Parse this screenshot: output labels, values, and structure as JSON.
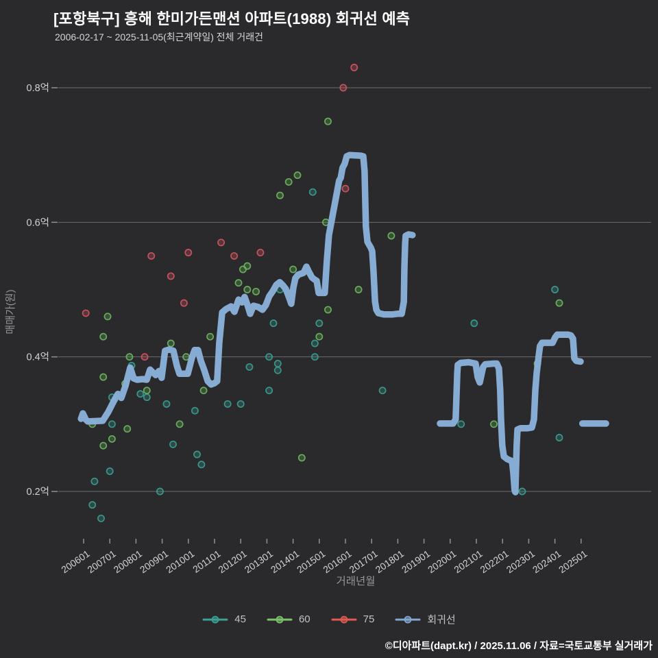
{
  "header": {
    "title": "[포항북구] 흥해 한미가든맨션 아파트(1988) 회귀선 예측",
    "subtitle": "2006-02-17 ~ 2025-11-05(최근계약일) 전체 거래건"
  },
  "footer": {
    "credit": "©디아파트(dapt.kr) / 2025.11.06 / 자료=국토교통부 실거래가"
  },
  "colors": {
    "background": "#2a292b",
    "grid": "#6c6c71",
    "tick": "#919195",
    "tick_label": "#d2d2d5",
    "axis_title": "#95959a",
    "series_45": "#3a9c8e",
    "series_60": "#69b55c",
    "series_75": "#cc5560",
    "regression": "#8ab1d9"
  },
  "legend": [
    {
      "label": "45",
      "color": "#3ba294"
    },
    {
      "label": "60",
      "color": "#7cc468"
    },
    {
      "label": "75",
      "color": "#e25a52"
    },
    {
      "label": "회귀선",
      "color": "#82a8d2"
    }
  ],
  "chart_data": {
    "type": "scatter",
    "title": "[포항북구] 흥해 한미가든맨션 아파트(1988) 회귀선 예측",
    "xlabel": "거래년월",
    "ylabel": "매매가(원)",
    "x_ticks": [
      "200601",
      "200701",
      "200801",
      "200901",
      "201001",
      "201101",
      "201201",
      "201301",
      "201401",
      "201501",
      "201601",
      "201701",
      "201801",
      "201901",
      "202001",
      "202101",
      "202201",
      "202301",
      "202401",
      "202501"
    ],
    "y_ticks": [
      {
        "value": 0.2,
        "label": "0.2억"
      },
      {
        "value": 0.4,
        "label": "0.4억"
      },
      {
        "value": 0.6,
        "label": "0.6억"
      },
      {
        "value": 0.8,
        "label": "0.8억"
      }
    ],
    "x_range_years": [
      2005.0,
      2027.0
    ],
    "y_range_eok": [
      0.13,
      0.87
    ],
    "grid": true,
    "legend_position": "bottom",
    "unit": "억",
    "series": [
      {
        "name": "45",
        "points": [
          [
            "2006-05",
            0.18
          ],
          [
            "2006-06",
            0.215
          ],
          [
            "2006-09",
            0.16
          ],
          [
            "2007-01",
            0.23
          ],
          [
            "2007-02",
            0.34
          ],
          [
            "2007-02",
            0.3
          ],
          [
            "2007-11",
            0.387
          ],
          [
            "2008-03",
            0.345
          ],
          [
            "2008-06",
            0.34
          ],
          [
            "2008-12",
            0.2
          ],
          [
            "2009-03",
            0.33
          ],
          [
            "2009-06",
            0.27
          ],
          [
            "2010-04",
            0.32
          ],
          [
            "2010-05",
            0.255
          ],
          [
            "2010-07",
            0.24
          ],
          [
            "2011-07",
            0.33
          ],
          [
            "2012-01",
            0.33
          ],
          [
            "2012-05",
            0.385
          ],
          [
            "2013-02",
            0.35
          ],
          [
            "2013-02",
            0.4
          ],
          [
            "2013-04",
            0.45
          ],
          [
            "2013-06",
            0.39
          ],
          [
            "2013-06",
            0.38
          ],
          [
            "2013-07",
            0.5
          ],
          [
            "2014-10",
            0.645
          ],
          [
            "2014-11",
            0.4
          ],
          [
            "2014-11",
            0.42
          ],
          [
            "2015-01",
            0.45
          ],
          [
            "2017-06",
            0.35
          ],
          [
            "2020-06",
            0.3
          ],
          [
            "2020-12",
            0.45
          ],
          [
            "2022-10",
            0.2
          ],
          [
            "2024-01",
            0.5
          ],
          [
            "2024-03",
            0.28
          ]
        ]
      },
      {
        "name": "60",
        "points": [
          [
            "2006-05",
            0.3
          ],
          [
            "2006-10",
            0.43
          ],
          [
            "2006-10",
            0.37
          ],
          [
            "2006-10",
            0.268
          ],
          [
            "2006-12",
            0.46
          ],
          [
            "2007-02",
            0.278
          ],
          [
            "2007-08",
            0.36
          ],
          [
            "2007-09",
            0.293
          ],
          [
            "2007-10",
            0.4
          ],
          [
            "2008-06",
            0.35
          ],
          [
            "2009-05",
            0.42
          ],
          [
            "2009-09",
            0.3
          ],
          [
            "2009-12",
            0.4
          ],
          [
            "2010-08",
            0.35
          ],
          [
            "2010-11",
            0.43
          ],
          [
            "2011-12",
            0.51
          ],
          [
            "2012-02",
            0.53
          ],
          [
            "2012-04",
            0.535
          ],
          [
            "2012-04",
            0.5
          ],
          [
            "2012-08",
            0.497
          ],
          [
            "2013-07",
            0.64
          ],
          [
            "2013-11",
            0.66
          ],
          [
            "2014-01",
            0.53
          ],
          [
            "2014-03",
            0.67
          ],
          [
            "2014-05",
            0.25
          ],
          [
            "2015-01",
            0.43
          ],
          [
            "2015-04",
            0.6
          ],
          [
            "2015-05",
            0.75
          ],
          [
            "2015-05",
            0.47
          ],
          [
            "2016-07",
            0.5
          ],
          [
            "2017-10",
            0.58
          ],
          [
            "2021-09",
            0.3
          ],
          [
            "2023-05",
            0.39
          ],
          [
            "2024-03",
            0.48
          ]
        ]
      },
      {
        "name": "75",
        "points": [
          [
            "2006-02",
            0.465
          ],
          [
            "2008-05",
            0.4
          ],
          [
            "2008-08",
            0.55
          ],
          [
            "2009-05",
            0.52
          ],
          [
            "2009-11",
            0.48
          ],
          [
            "2010-01",
            0.555
          ],
          [
            "2011-04",
            0.57
          ],
          [
            "2011-10",
            0.55
          ],
          [
            "2012-10",
            0.555
          ],
          [
            "2015-12",
            0.8
          ],
          [
            "2016-01",
            0.65
          ],
          [
            "2016-05",
            0.83
          ]
        ]
      }
    ],
    "regression_line": {
      "name": "회귀선",
      "segments": [
        [
          [
            2005.9,
            0.308
          ],
          [
            2005.97,
            0.316
          ],
          [
            2006.08,
            0.307
          ],
          [
            2006.16,
            0.304
          ],
          [
            2006.73,
            0.305
          ],
          [
            2006.94,
            0.318
          ],
          [
            2007.15,
            0.334
          ],
          [
            2007.31,
            0.345
          ],
          [
            2007.44,
            0.339
          ],
          [
            2007.6,
            0.357
          ],
          [
            2007.78,
            0.384
          ],
          [
            2007.91,
            0.368
          ],
          [
            2008.04,
            0.366
          ],
          [
            2008.25,
            0.367
          ],
          [
            2008.41,
            0.366
          ],
          [
            2008.54,
            0.381
          ],
          [
            2008.64,
            0.377
          ],
          [
            2008.75,
            0.373
          ],
          [
            2008.88,
            0.379
          ],
          [
            2008.98,
            0.369
          ],
          [
            2009.11,
            0.409
          ],
          [
            2009.27,
            0.411
          ],
          [
            2009.43,
            0.409
          ],
          [
            2009.56,
            0.387
          ],
          [
            2009.66,
            0.375
          ],
          [
            2009.98,
            0.375
          ],
          [
            2010.14,
            0.399
          ],
          [
            2010.24,
            0.41
          ],
          [
            2010.37,
            0.41
          ],
          [
            2010.48,
            0.394
          ],
          [
            2010.61,
            0.38
          ],
          [
            2010.74,
            0.364
          ],
          [
            2010.87,
            0.359
          ],
          [
            2011.0,
            0.361
          ],
          [
            2011.1,
            0.364
          ],
          [
            2011.18,
            0.421
          ],
          [
            2011.29,
            0.466
          ],
          [
            2011.44,
            0.471
          ],
          [
            2011.63,
            0.475
          ],
          [
            2011.76,
            0.467
          ],
          [
            2011.92,
            0.485
          ],
          [
            2012.05,
            0.481
          ],
          [
            2012.15,
            0.489
          ],
          [
            2012.26,
            0.477
          ],
          [
            2012.36,
            0.464
          ],
          [
            2012.49,
            0.476
          ],
          [
            2012.67,
            0.474
          ],
          [
            2012.83,
            0.47
          ],
          [
            2012.96,
            0.477
          ],
          [
            2013.09,
            0.49
          ],
          [
            2013.23,
            0.498
          ],
          [
            2013.36,
            0.507
          ],
          [
            2013.49,
            0.511
          ],
          [
            2013.62,
            0.506
          ],
          [
            2013.72,
            0.501
          ],
          [
            2013.83,
            0.49
          ],
          [
            2013.93,
            0.479
          ],
          [
            2014.01,
            0.503
          ],
          [
            2014.09,
            0.517
          ],
          [
            2014.19,
            0.522
          ],
          [
            2014.4,
            0.525
          ],
          [
            2014.51,
            0.534
          ],
          [
            2014.61,
            0.526
          ],
          [
            2014.72,
            0.518
          ],
          [
            2014.82,
            0.515
          ],
          [
            2014.9,
            0.513
          ],
          [
            2014.98,
            0.495
          ],
          [
            2015.21,
            0.495
          ],
          [
            2015.29,
            0.543
          ],
          [
            2015.37,
            0.581
          ],
          [
            2015.58,
            0.625
          ],
          [
            2015.76,
            0.662
          ],
          [
            2015.82,
            0.666
          ],
          [
            2015.89,
            0.681
          ],
          [
            2015.97,
            0.687
          ],
          [
            2016.05,
            0.698
          ],
          [
            2016.16,
            0.7
          ],
          [
            2016.58,
            0.699
          ],
          [
            2016.68,
            0.698
          ],
          [
            2016.73,
            0.676
          ],
          [
            2016.78,
            0.594
          ],
          [
            2016.84,
            0.571
          ],
          [
            2016.97,
            0.562
          ],
          [
            2017.02,
            0.557
          ],
          [
            2017.07,
            0.528
          ],
          [
            2017.13,
            0.482
          ],
          [
            2017.18,
            0.47
          ],
          [
            2017.26,
            0.465
          ],
          [
            2017.47,
            0.463
          ],
          [
            2017.78,
            0.463
          ],
          [
            2017.99,
            0.464
          ],
          [
            2018.15,
            0.464
          ],
          [
            2018.23,
            0.482
          ],
          [
            2018.25,
            0.533
          ],
          [
            2018.28,
            0.569
          ],
          [
            2018.3,
            0.58
          ],
          [
            2018.41,
            0.582
          ],
          [
            2018.56,
            0.581
          ]
        ],
        [
          [
            2019.61,
            0.301
          ],
          [
            2020.11,
            0.301
          ],
          [
            2020.21,
            0.307
          ],
          [
            2020.27,
            0.375
          ],
          [
            2020.29,
            0.388
          ],
          [
            2020.4,
            0.391
          ],
          [
            2020.71,
            0.392
          ],
          [
            2020.97,
            0.39
          ],
          [
            2021.05,
            0.37
          ],
          [
            2021.13,
            0.362
          ],
          [
            2021.26,
            0.385
          ],
          [
            2021.34,
            0.389
          ],
          [
            2021.65,
            0.39
          ],
          [
            2021.78,
            0.39
          ],
          [
            2021.86,
            0.383
          ],
          [
            2021.91,
            0.35
          ],
          [
            2021.94,
            0.309
          ],
          [
            2021.99,
            0.268
          ],
          [
            2022.05,
            0.252
          ],
          [
            2022.18,
            0.248
          ],
          [
            2022.36,
            0.245
          ],
          [
            2022.41,
            0.228
          ],
          [
            2022.46,
            0.202
          ],
          [
            2022.49,
            0.199
          ],
          [
            2022.54,
            0.268
          ],
          [
            2022.57,
            0.292
          ],
          [
            2022.7,
            0.294
          ],
          [
            2022.96,
            0.294
          ],
          [
            2023.12,
            0.295
          ],
          [
            2023.2,
            0.307
          ],
          [
            2023.25,
            0.35
          ],
          [
            2023.3,
            0.375
          ],
          [
            2023.38,
            0.401
          ],
          [
            2023.43,
            0.416
          ],
          [
            2023.51,
            0.421
          ],
          [
            2023.91,
            0.421
          ],
          [
            2024.01,
            0.429
          ],
          [
            2024.09,
            0.433
          ],
          [
            2024.51,
            0.433
          ],
          [
            2024.61,
            0.432
          ],
          [
            2024.69,
            0.427
          ],
          [
            2024.72,
            0.411
          ],
          [
            2024.74,
            0.398
          ],
          [
            2024.82,
            0.394
          ],
          [
            2024.98,
            0.393
          ]
        ],
        [
          [
            2025.05,
            0.301
          ],
          [
            2025.95,
            0.301
          ]
        ]
      ]
    }
  }
}
